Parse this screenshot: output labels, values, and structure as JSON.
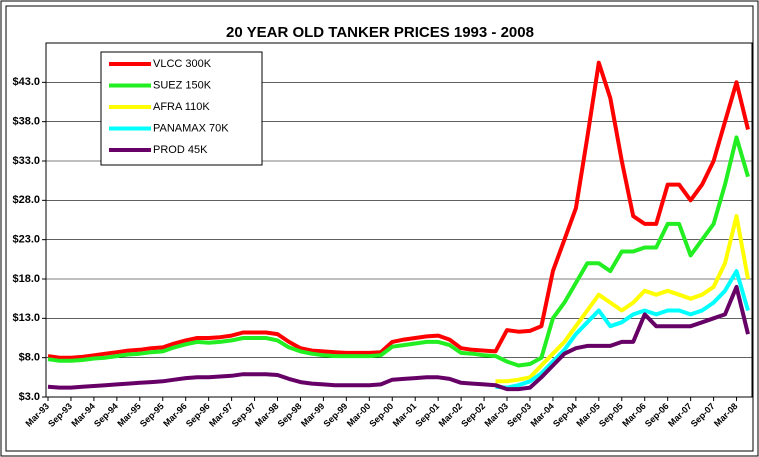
{
  "chart_data": {
    "type": "line",
    "title": "20 YEAR OLD TANKER PRICES 1993 - 2008",
    "categories": [
      "Mar-93",
      null,
      "Sep-93",
      null,
      "Mar-94",
      null,
      "Sep-94",
      null,
      "Mar-95",
      null,
      "Sep-95",
      null,
      "Mar-96",
      null,
      "Sep-96",
      null,
      "Mar-97",
      null,
      "Sep-97",
      null,
      "Mar-98",
      null,
      "Sep-98",
      null,
      "Mar-99",
      null,
      "Sep-99",
      null,
      "Mar-00",
      null,
      "Sep-00",
      null,
      "Mar-01",
      null,
      "Sep-01",
      null,
      "Mar-02",
      null,
      "Sep-02",
      null,
      "Mar-03",
      null,
      "Sep-03",
      null,
      "Mar-04",
      null,
      "Sep-04",
      null,
      "Mar-05",
      null,
      "Sep-05",
      null,
      "Mar-06",
      null,
      "Sep-06",
      null,
      "Mar-07",
      null,
      "Sep-07",
      null,
      "Mar-08",
      null
    ],
    "series": [
      {
        "name": "VLCC 300K",
        "color": "#ff0000",
        "values": [
          8.2,
          8.0,
          8.0,
          8.1,
          8.3,
          8.5,
          8.7,
          8.9,
          9.0,
          9.2,
          9.3,
          9.8,
          10.2,
          10.5,
          10.5,
          10.6,
          10.8,
          11.2,
          11.2,
          11.2,
          11.0,
          10.0,
          9.2,
          8.9,
          8.8,
          8.7,
          8.6,
          8.6,
          8.6,
          8.7,
          10.0,
          10.3,
          10.5,
          10.7,
          10.8,
          10.3,
          9.2,
          9.0,
          8.9,
          8.8,
          11.5,
          11.3,
          11.4,
          12.0,
          19.0,
          23.0,
          27.0,
          36.0,
          45.5,
          41.0,
          33.0,
          26.0,
          25.0,
          25.0,
          30.0,
          30.0,
          28.0,
          30.0,
          33.0,
          38.0,
          43.0,
          37.0
        ]
      },
      {
        "name": "SUEZ 150K",
        "color": "#22ee22",
        "values": [
          7.8,
          7.6,
          7.6,
          7.7,
          7.9,
          8.0,
          8.2,
          8.4,
          8.5,
          8.7,
          8.8,
          9.3,
          9.7,
          10.0,
          9.9,
          10.0,
          10.2,
          10.5,
          10.5,
          10.5,
          10.2,
          9.3,
          8.8,
          8.5,
          8.3,
          8.2,
          8.2,
          8.2,
          8.2,
          8.3,
          9.4,
          9.6,
          9.8,
          10.0,
          10.0,
          9.6,
          8.6,
          8.5,
          8.3,
          8.2,
          7.5,
          7.0,
          7.2,
          8.0,
          13.0,
          15.0,
          17.5,
          20.0,
          20.0,
          19.0,
          21.5,
          21.5,
          22.0,
          22.0,
          25.0,
          25.0,
          21.0,
          23.0,
          25.0,
          30.0,
          36.0,
          31.0
        ]
      },
      {
        "name": "AFRA 110K",
        "color": "#ffff00",
        "values": [
          null,
          null,
          null,
          null,
          null,
          null,
          null,
          null,
          null,
          null,
          null,
          null,
          null,
          null,
          null,
          null,
          null,
          null,
          null,
          null,
          null,
          null,
          null,
          null,
          null,
          null,
          null,
          null,
          null,
          null,
          null,
          null,
          null,
          null,
          null,
          null,
          null,
          null,
          null,
          5.0,
          5.0,
          5.2,
          5.5,
          7.0,
          8.5,
          10.0,
          12.0,
          14.0,
          16.0,
          15.0,
          14.0,
          15.0,
          16.5,
          16.0,
          16.5,
          16.0,
          15.5,
          16.0,
          17.0,
          20.0,
          26.0,
          18.0
        ]
      },
      {
        "name": "PANAMAX 70K",
        "color": "#00ffff",
        "values": [
          null,
          null,
          null,
          null,
          null,
          null,
          null,
          null,
          null,
          null,
          null,
          null,
          null,
          null,
          null,
          null,
          null,
          null,
          null,
          null,
          null,
          null,
          null,
          null,
          null,
          null,
          null,
          null,
          null,
          null,
          null,
          null,
          null,
          null,
          null,
          null,
          null,
          null,
          null,
          4.3,
          4.2,
          4.5,
          5.0,
          6.0,
          7.5,
          9.0,
          11.0,
          12.5,
          14.0,
          12.0,
          12.5,
          13.5,
          14.0,
          13.5,
          14.0,
          14.0,
          13.5,
          14.0,
          15.0,
          16.5,
          19.0,
          14.0
        ]
      },
      {
        "name": "PROD 45K",
        "color": "#660066",
        "values": [
          4.3,
          4.2,
          4.2,
          4.3,
          4.4,
          4.5,
          4.6,
          4.7,
          4.8,
          4.9,
          5.0,
          5.2,
          5.4,
          5.5,
          5.5,
          5.6,
          5.7,
          5.9,
          5.9,
          5.9,
          5.8,
          5.3,
          4.9,
          4.7,
          4.6,
          4.5,
          4.5,
          4.5,
          4.5,
          4.6,
          5.2,
          5.3,
          5.4,
          5.5,
          5.5,
          5.3,
          4.8,
          4.7,
          4.6,
          4.5,
          4.0,
          4.0,
          4.2,
          5.5,
          7.0,
          8.5,
          9.2,
          9.5,
          9.5,
          9.5,
          10.0,
          10.0,
          13.5,
          12.0,
          12.0,
          12.0,
          12.0,
          12.5,
          13.0,
          13.5,
          17.0,
          11.0
        ]
      }
    ],
    "ylim": [
      3,
      48
    ],
    "yticks": [
      {
        "value": 3,
        "label": "$3.0"
      },
      {
        "value": 8,
        "label": "$8.0"
      },
      {
        "value": 13,
        "label": "$13.0"
      },
      {
        "value": 18,
        "label": "$18.0"
      },
      {
        "value": 23,
        "label": "$23.0"
      },
      {
        "value": 28,
        "label": "$28.0"
      },
      {
        "value": 33,
        "label": "$33.0"
      },
      {
        "value": 38,
        "label": "$38.0"
      },
      {
        "value": 43,
        "label": "$43.0"
      }
    ],
    "grid": true,
    "legend": "top-left"
  }
}
